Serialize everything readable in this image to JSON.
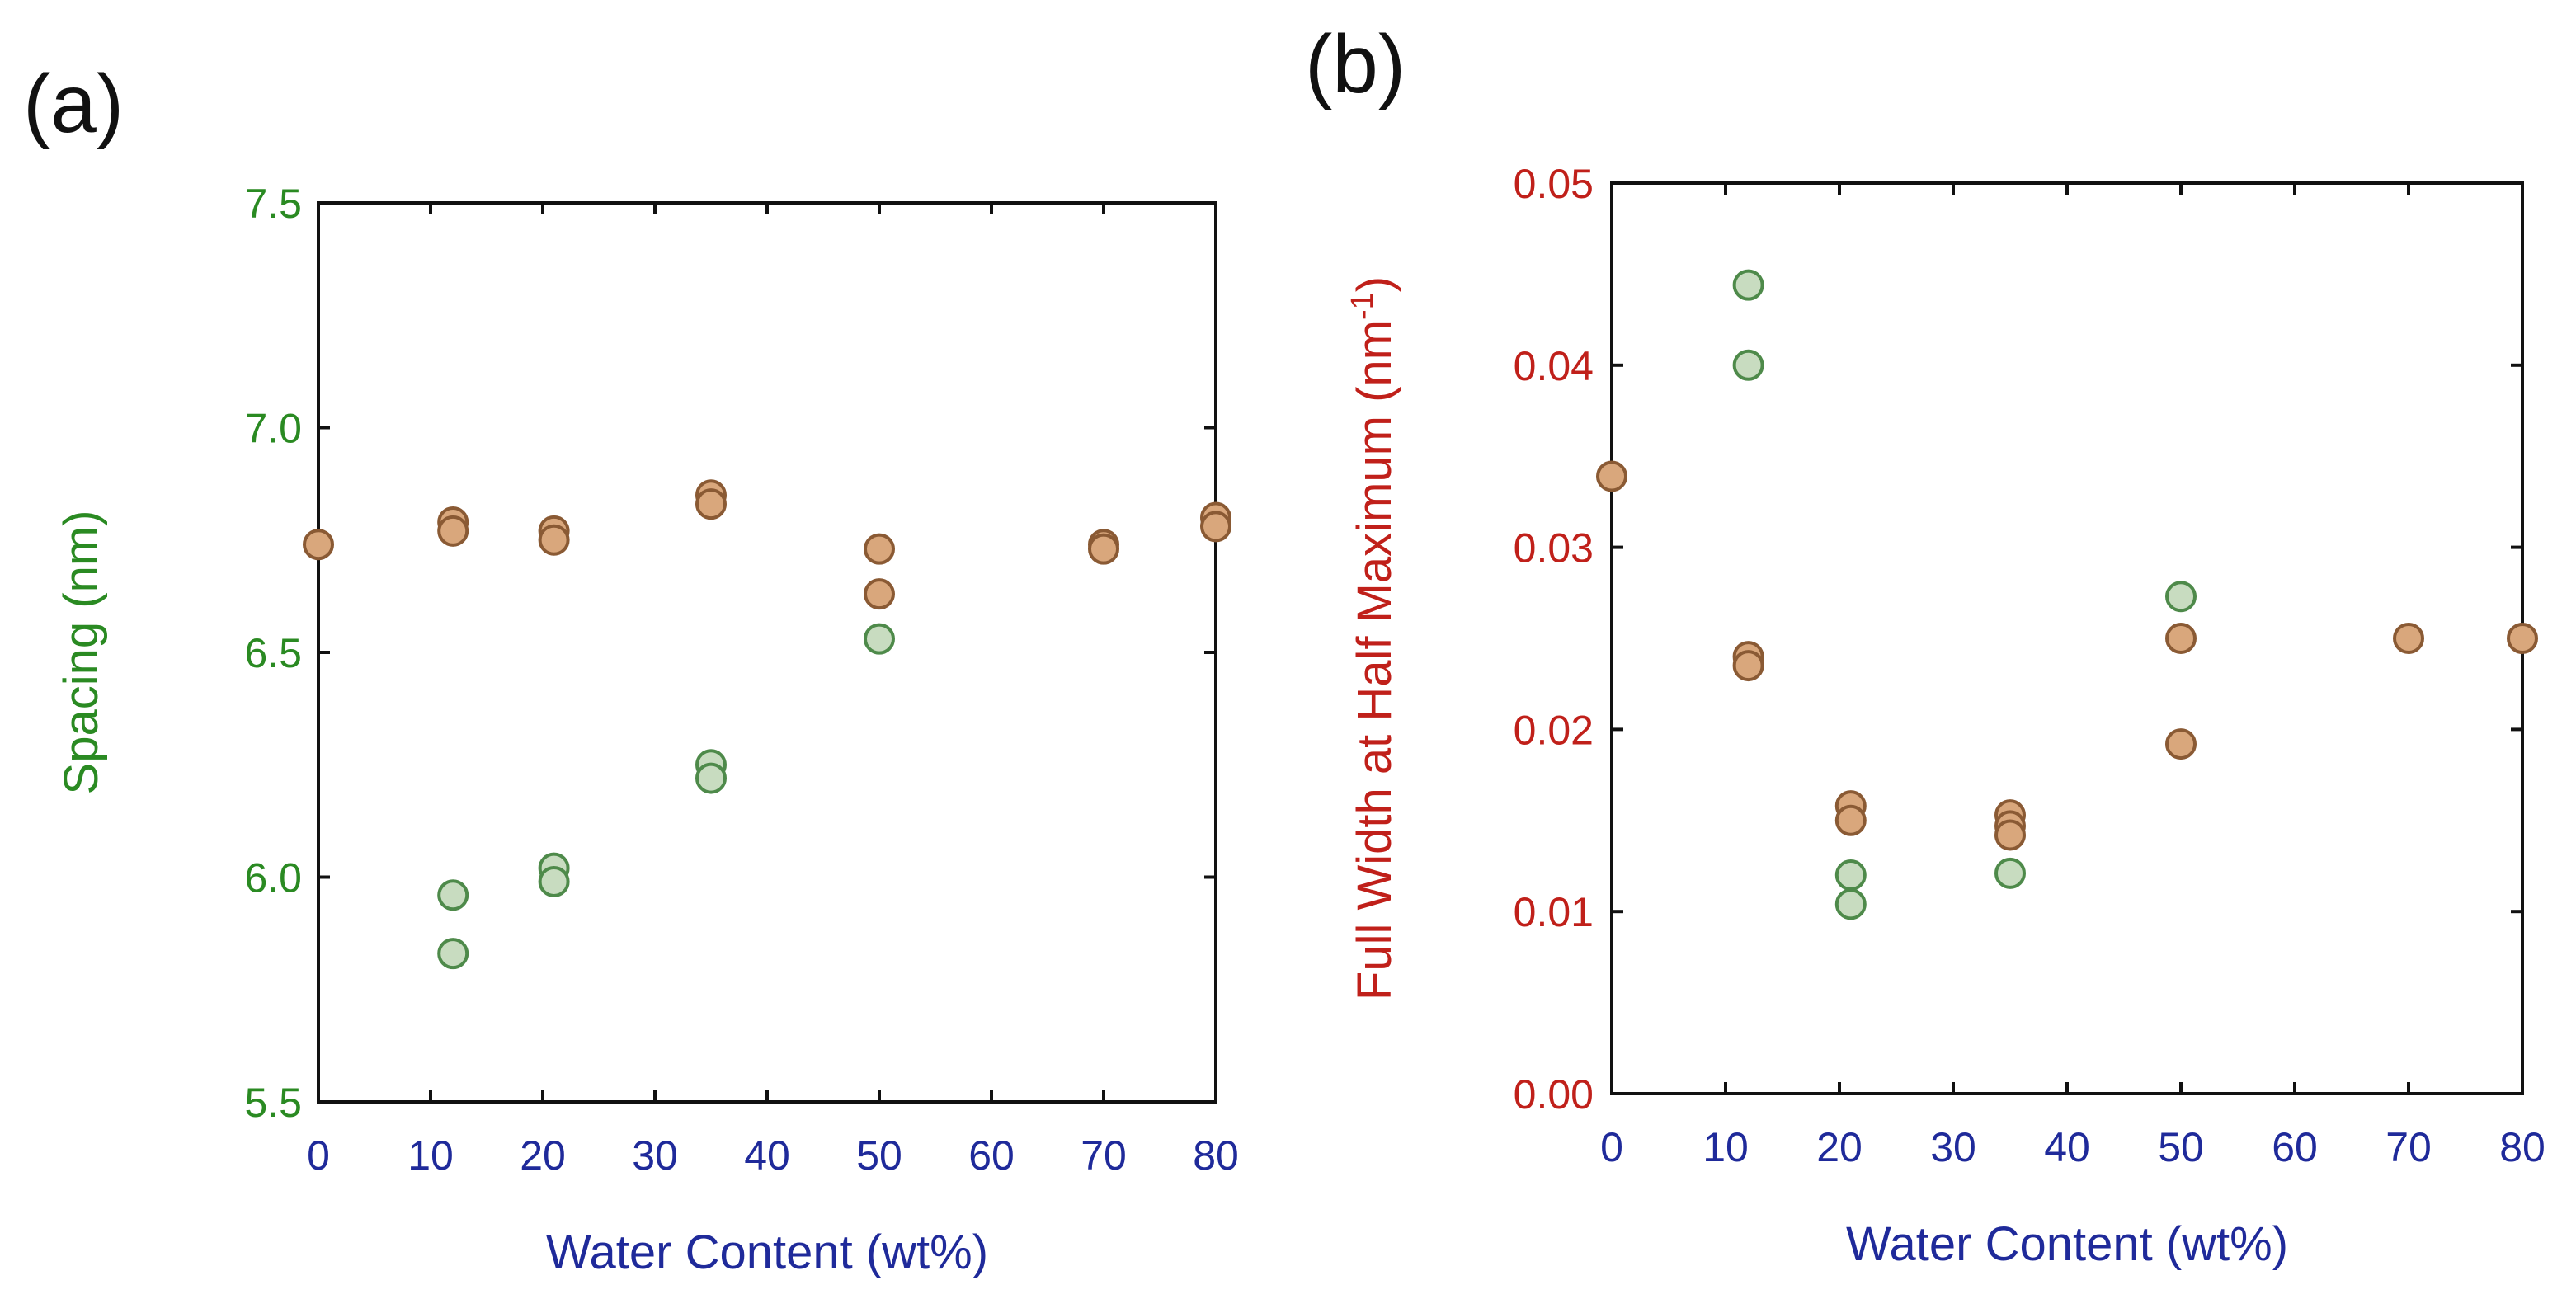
{
  "chart_data": [
    {
      "type": "scatter",
      "panel_label": "(a)",
      "xlabel": "Water Content (wt%)",
      "ylabel": "Spacing (nm)",
      "xlim": [
        0,
        80
      ],
      "ylim": [
        5.5,
        7.5
      ],
      "x_ticks": [
        "0",
        "10",
        "20",
        "30",
        "40",
        "50",
        "60",
        "70",
        "80"
      ],
      "y_ticks": [
        "5.5",
        "6.0",
        "6.5",
        "7.0",
        "7.5"
      ],
      "grid": false,
      "colors": {
        "xaxis_text": "#1f2a9a",
        "yaxis_text": "#2a8a22"
      },
      "series": [
        {
          "name": "green",
          "fill": "#c8dcc0",
          "stroke": "#4e8a4a",
          "points": [
            [
              12,
              5.96
            ],
            [
              12,
              5.83
            ],
            [
              21,
              6.02
            ],
            [
              21,
              5.99
            ],
            [
              35,
              6.25
            ],
            [
              35,
              6.22
            ],
            [
              50,
              6.53
            ]
          ]
        },
        {
          "name": "brown",
          "fill": "#d9a77c",
          "stroke": "#8a5a34",
          "points": [
            [
              0,
              6.74
            ],
            [
              12,
              6.79
            ],
            [
              12,
              6.77
            ],
            [
              21,
              6.77
            ],
            [
              21,
              6.75
            ],
            [
              35,
              6.85
            ],
            [
              35,
              6.83
            ],
            [
              50,
              6.73
            ],
            [
              50,
              6.63
            ],
            [
              70,
              6.74
            ],
            [
              70,
              6.73
            ],
            [
              80,
              6.8
            ],
            [
              80,
              6.78
            ]
          ]
        }
      ]
    },
    {
      "type": "scatter",
      "panel_label": "(b)",
      "xlabel": "Water Content (wt%)",
      "ylabel_main": "Full Width at Half Maximum (nm",
      "ylabel_sup": "-1",
      "ylabel_end": ")",
      "xlim": [
        0,
        80
      ],
      "ylim": [
        0.0,
        0.05
      ],
      "x_ticks": [
        "0",
        "10",
        "20",
        "30",
        "40",
        "50",
        "60",
        "70",
        "80"
      ],
      "y_ticks": [
        "0.00",
        "0.01",
        "0.02",
        "0.03",
        "0.04",
        "0.05"
      ],
      "grid": false,
      "colors": {
        "xaxis_text": "#1f2a9a",
        "yaxis_text": "#c0201a"
      },
      "series": [
        {
          "name": "green",
          "fill": "#c8dcc0",
          "stroke": "#4e8a4a",
          "points": [
            [
              12,
              0.0444
            ],
            [
              12,
              0.04
            ],
            [
              21,
              0.012
            ],
            [
              21,
              0.0104
            ],
            [
              35,
              0.0121
            ],
            [
              50,
              0.0273
            ]
          ]
        },
        {
          "name": "brown",
          "fill": "#d9a77c",
          "stroke": "#8a5a34",
          "points": [
            [
              0,
              0.0339
            ],
            [
              12,
              0.024
            ],
            [
              12,
              0.0235
            ],
            [
              21,
              0.0158
            ],
            [
              21,
              0.015
            ],
            [
              35,
              0.0153
            ],
            [
              35,
              0.0147
            ],
            [
              35,
              0.0142
            ],
            [
              50,
              0.025
            ],
            [
              50,
              0.0192
            ],
            [
              70,
              0.025
            ],
            [
              80,
              0.025
            ]
          ]
        }
      ]
    }
  ]
}
